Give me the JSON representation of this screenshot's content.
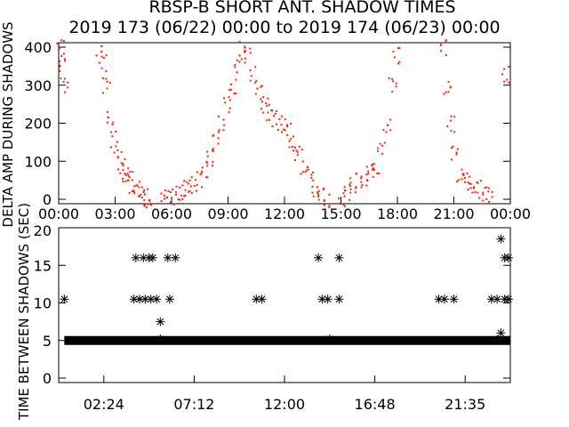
{
  "chart_data": [
    {
      "type": "scatter",
      "title": "RBSP-B SHORT ANT. SHADOW TIMES",
      "subtitle": "2019 173 (06/22) 00:00 to 2019 174 (06/23) 00:00",
      "ylabel": "DELTA AMP DURING SHADOWS",
      "xlim": [
        0,
        24
      ],
      "ylim": [
        0,
        400
      ],
      "xticks": [
        "00:00",
        "03:00",
        "06:00",
        "09:00",
        "12:00",
        "15:00",
        "18:00",
        "21:00",
        "00:00"
      ],
      "yticks": [
        "0",
        "100",
        "200",
        "300",
        "400"
      ],
      "color": "#ff2000",
      "points": [
        [
          0.05,
          400
        ],
        [
          0.15,
          350
        ],
        [
          0.25,
          300
        ],
        [
          2.1,
          400
        ],
        [
          2.3,
          360
        ],
        [
          2.5,
          300
        ],
        [
          2.7,
          220
        ],
        [
          2.9,
          160
        ],
        [
          3.1,
          110
        ],
        [
          3.3,
          90
        ],
        [
          3.5,
          70
        ],
        [
          3.7,
          55
        ],
        [
          3.9,
          40
        ],
        [
          4.1,
          30
        ],
        [
          4.3,
          18
        ],
        [
          4.5,
          8
        ],
        [
          4.7,
          2
        ],
        [
          5.6,
          5
        ],
        [
          5.9,
          10
        ],
        [
          6.2,
          15
        ],
        [
          6.5,
          22
        ],
        [
          6.8,
          30
        ],
        [
          7.1,
          40
        ],
        [
          7.4,
          55
        ],
        [
          7.7,
          80
        ],
        [
          8.0,
          110
        ],
        [
          8.3,
          150
        ],
        [
          8.6,
          200
        ],
        [
          8.9,
          250
        ],
        [
          9.2,
          300
        ],
        [
          9.5,
          350
        ],
        [
          9.7,
          400
        ],
        [
          10.0,
          380
        ],
        [
          10.3,
          330
        ],
        [
          10.6,
          280
        ],
        [
          10.9,
          250
        ],
        [
          11.2,
          230
        ],
        [
          11.5,
          215
        ],
        [
          11.8,
          200
        ],
        [
          12.1,
          180
        ],
        [
          12.4,
          150
        ],
        [
          12.7,
          120
        ],
        [
          13.0,
          90
        ],
        [
          13.3,
          60
        ],
        [
          13.6,
          30
        ],
        [
          13.9,
          10
        ],
        [
          14.2,
          2
        ],
        [
          15.0,
          5
        ],
        [
          15.3,
          20
        ],
        [
          15.6,
          40
        ],
        [
          15.9,
          50
        ],
        [
          16.2,
          55
        ],
        [
          16.5,
          70
        ],
        [
          16.8,
          90
        ],
        [
          17.1,
          130
        ],
        [
          17.4,
          200
        ],
        [
          17.7,
          300
        ],
        [
          17.9,
          380
        ],
        [
          20.4,
          400
        ],
        [
          20.6,
          300
        ],
        [
          20.8,
          200
        ],
        [
          21.0,
          120
        ],
        [
          21.3,
          70
        ],
        [
          21.6,
          50
        ],
        [
          21.9,
          40
        ],
        [
          22.2,
          30
        ],
        [
          22.5,
          20
        ],
        [
          22.8,
          12
        ],
        [
          23.7,
          330
        ]
      ]
    },
    {
      "type": "scatter",
      "ylabel": "TIME BETWEEN SHADOWS (SEC)",
      "xlim": [
        0,
        24
      ],
      "ylim": [
        0,
        20
      ],
      "xticks": [
        "02:24",
        "07:12",
        "12:00",
        "16:48",
        "21:35"
      ],
      "yticks": [
        "0",
        "5",
        "10",
        "15",
        "20"
      ],
      "color": "#000000",
      "band": {
        "value": 5,
        "from": 0.3,
        "to": 24
      },
      "points": [
        [
          0.3,
          10.5
        ],
        [
          4.0,
          10.5
        ],
        [
          4.3,
          10.5
        ],
        [
          4.6,
          10.5
        ],
        [
          4.9,
          10.5
        ],
        [
          5.2,
          10.5
        ],
        [
          5.9,
          10.5
        ],
        [
          10.5,
          10.5
        ],
        [
          10.8,
          10.5
        ],
        [
          14.0,
          10.5
        ],
        [
          14.3,
          10.5
        ],
        [
          14.9,
          10.5
        ],
        [
          20.2,
          10.5
        ],
        [
          20.5,
          10.5
        ],
        [
          21.0,
          10.5
        ],
        [
          23.0,
          10.5
        ],
        [
          23.3,
          10.5
        ],
        [
          23.7,
          10.5
        ],
        [
          23.9,
          10.5
        ],
        [
          4.1,
          16
        ],
        [
          4.5,
          16
        ],
        [
          4.8,
          16
        ],
        [
          5.0,
          16
        ],
        [
          5.8,
          16
        ],
        [
          6.2,
          16
        ],
        [
          13.8,
          16
        ],
        [
          14.9,
          16
        ],
        [
          23.7,
          16
        ],
        [
          23.9,
          16
        ],
        [
          5.4,
          7.5
        ],
        [
          5.4,
          5.2
        ],
        [
          14.4,
          5.2
        ],
        [
          23.5,
          18.5
        ],
        [
          23.5,
          6
        ],
        [
          23.3,
          5.1
        ]
      ]
    }
  ]
}
